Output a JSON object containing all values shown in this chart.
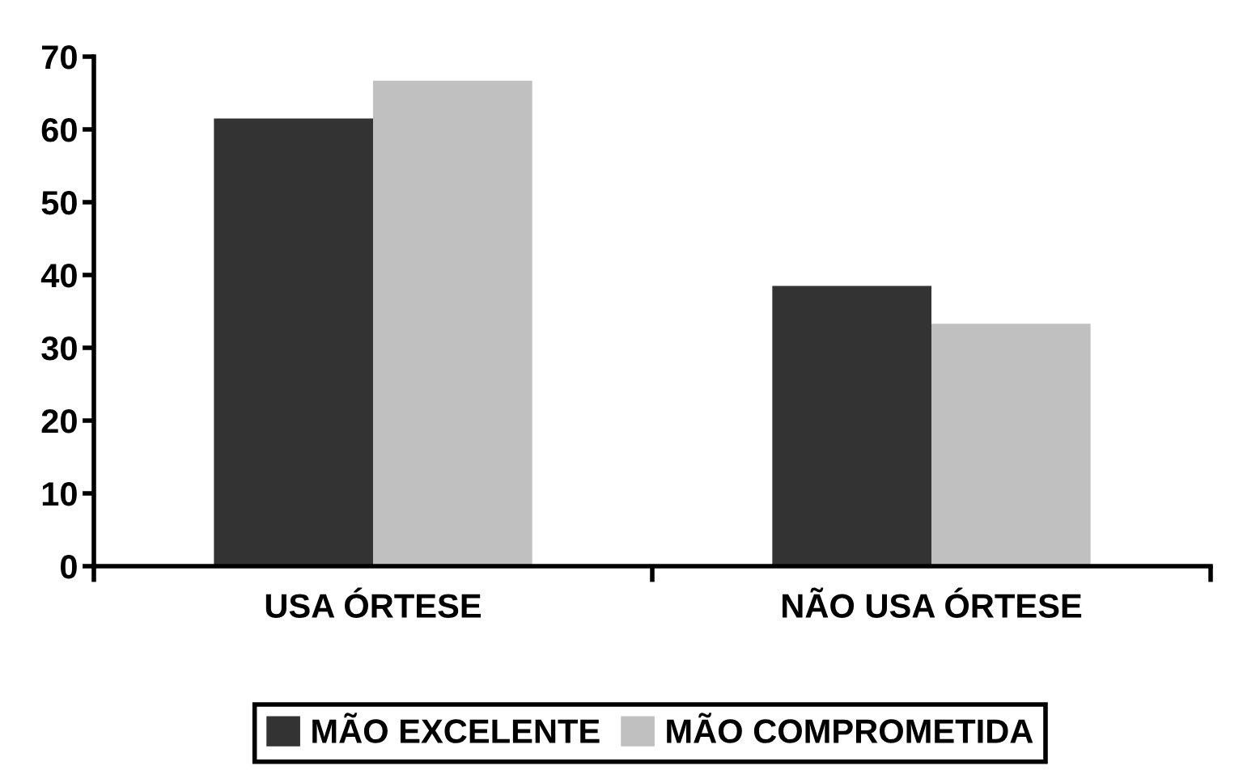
{
  "chart_data": {
    "type": "bar",
    "categories": [
      "USA ÓRTESE",
      "NÃO USA ÓRTESE"
    ],
    "series": [
      {
        "name": "MÃO EXCELENTE",
        "color": "#333333",
        "values": [
          61.5,
          38.5
        ]
      },
      {
        "name": "MÃO COMPROMETIDA",
        "color": "#c0c0c0",
        "values": [
          66.7,
          33.3
        ]
      }
    ],
    "ylim": [
      0,
      70
    ],
    "yticks": [
      0,
      10,
      20,
      30,
      40,
      50,
      60,
      70
    ],
    "grid": false,
    "legend": "bottom"
  }
}
